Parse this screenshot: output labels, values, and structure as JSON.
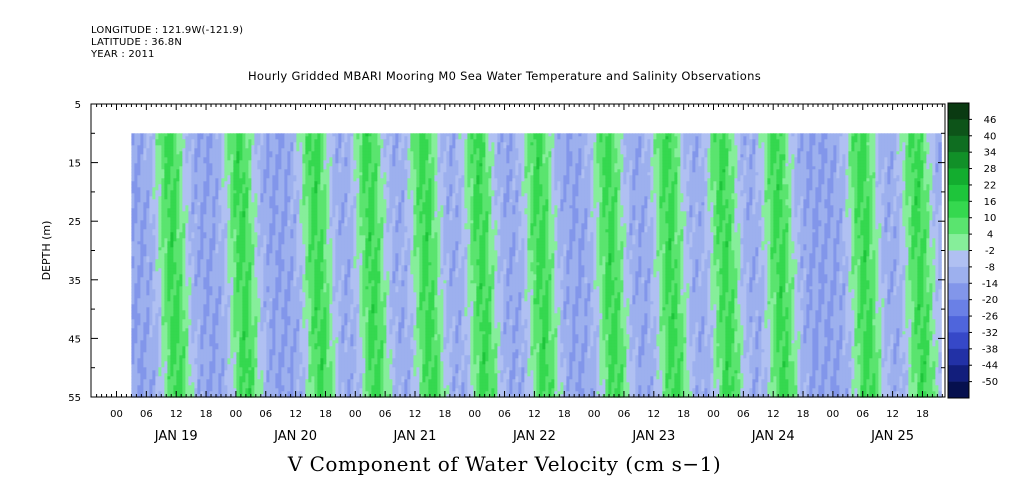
{
  "header": {
    "longitude": "LONGITUDE : 121.9W(-121.9)",
    "latitude": "LATITUDE : 36.8N",
    "year": "YEAR : 2011"
  },
  "chart_data": {
    "type": "heatmap",
    "title": "Hourly Gridded MBARI Mooring M0 Sea Water Temperature and Salinity Observations",
    "xlabel": "V Component of Water Velocity (cm s−1)",
    "ylabel": "DEPTH (m)",
    "ylim": [
      55,
      5
    ],
    "y_ticks": [
      "5",
      "15",
      "25",
      "35",
      "45",
      "55"
    ],
    "x_hour_ticks": [
      "00",
      "06",
      "12",
      "18",
      "00",
      "06",
      "12",
      "18",
      "00",
      "06",
      "12",
      "18",
      "00",
      "06",
      "12",
      "18",
      "00",
      "06",
      "12",
      "18",
      "00",
      "06",
      "12",
      "18",
      "00",
      "06",
      "12",
      "18"
    ],
    "x_day_labels": [
      "JAN 19",
      "JAN 20",
      "JAN 21",
      "JAN 22",
      "JAN 23",
      "JAN 24",
      "JAN 25"
    ],
    "colorbar": {
      "labels": [
        "46",
        "40",
        "34",
        "28",
        "22",
        "16",
        "10",
        "4",
        "-2",
        "-8",
        "-14",
        "-20",
        "-26",
        "-32",
        "-38",
        "-44",
        "-50"
      ],
      "colors": [
        "#0a3a12",
        "#0d5419",
        "#0f6e21",
        "#119028",
        "#13ad2f",
        "#1ec53b",
        "#35d84f",
        "#5ae46f",
        "#86ee9a",
        "#b0c0f2",
        "#9db0ee",
        "#8296ea",
        "#6a80e6",
        "#4f65dc",
        "#3648c8",
        "#2231a6",
        "#121e7c",
        "#06104e"
      ]
    },
    "data_extent": {
      "start": "JAN 19 03:00",
      "end": "JAN 25 21:00",
      "depth_top": 10,
      "depth_bottom": 55
    },
    "green_phases": [
      {
        "day": "JAN 19",
        "hour": 11
      },
      {
        "day": "JAN 20",
        "hour": 1
      },
      {
        "day": "JAN 20",
        "hour": 16
      },
      {
        "day": "JAN 21",
        "hour": 3
      },
      {
        "day": "JAN 21",
        "hour": 14
      },
      {
        "day": "JAN 22",
        "hour": 1
      },
      {
        "day": "JAN 22",
        "hour": 13
      },
      {
        "day": "JAN 23",
        "hour": 3
      },
      {
        "day": "JAN 23",
        "hour": 15
      },
      {
        "day": "JAN 24",
        "hour": 2
      },
      {
        "day": "JAN 24",
        "hour": 13
      },
      {
        "day": "JAN 25",
        "hour": 6
      },
      {
        "day": "JAN 25",
        "hour": 17
      }
    ]
  }
}
